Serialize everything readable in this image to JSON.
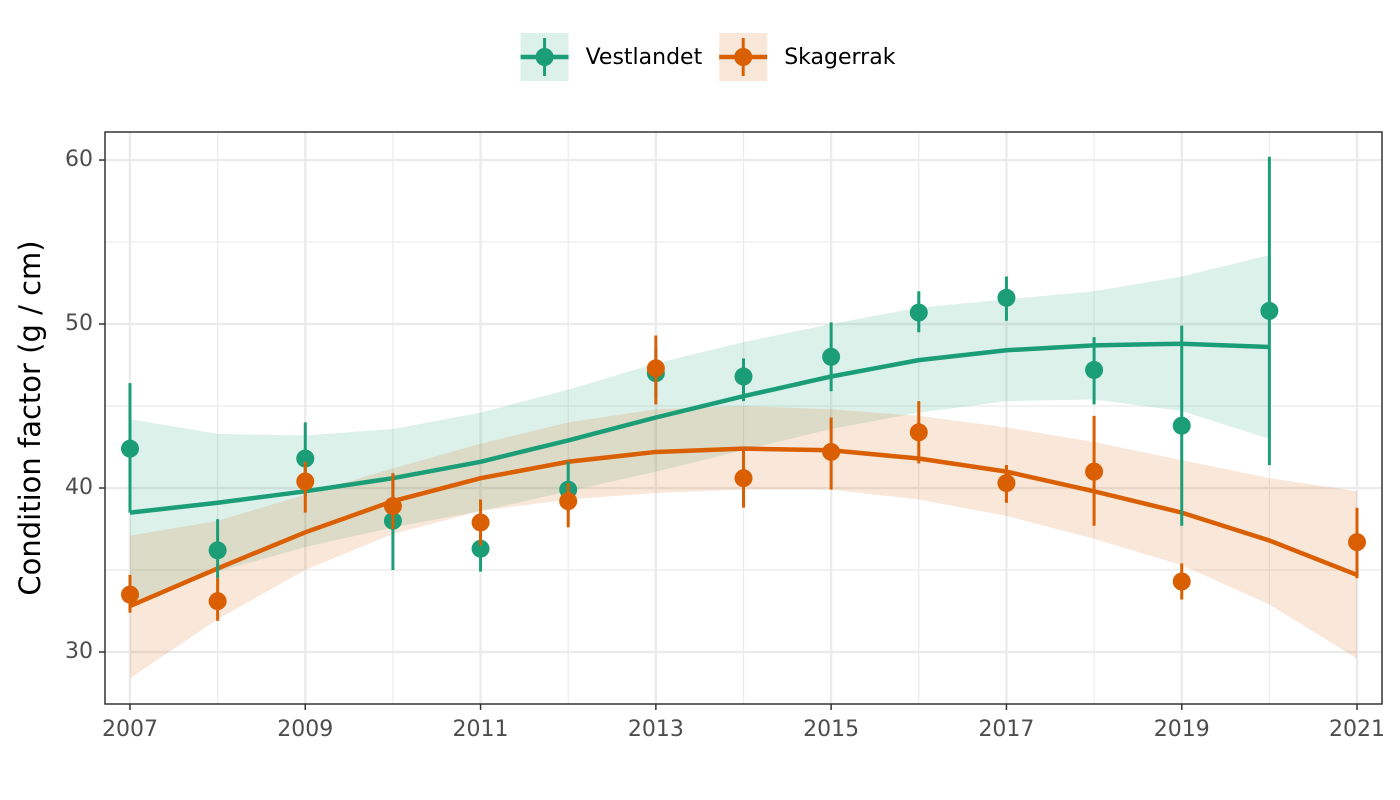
{
  "chart_data": {
    "type": "scatter",
    "y_label": "Condition factor (g / cm)",
    "legend": "top",
    "grid": true,
    "xlim": [
      2006.715,
      2021.285
    ],
    "ylim": [
      26.83,
      61.71
    ],
    "xticks": [
      2007,
      2009,
      2011,
      2013,
      2015,
      2017,
      2019,
      2021
    ],
    "yticks": [
      30,
      40,
      50,
      60
    ],
    "series": [
      {
        "name": "Vestlandet",
        "color": "#1b9e77",
        "x": [
          2007,
          2008,
          2009,
          2010,
          2011,
          2012,
          2013,
          2014,
          2015,
          2016,
          2017,
          2018,
          2019,
          2020
        ],
        "values": [
          42.4,
          36.2,
          41.8,
          38.0,
          36.3,
          39.9,
          47.0,
          46.8,
          48.0,
          50.7,
          51.6,
          47.2,
          43.8,
          50.8
        ],
        "lower": [
          38.5,
          34.5,
          39.5,
          35.0,
          34.9,
          38.5,
          45.5,
          45.3,
          45.9,
          49.5,
          50.2,
          45.1,
          37.7,
          41.4
        ],
        "upper": [
          46.4,
          38.1,
          44.0,
          40.9,
          38.0,
          41.6,
          48.5,
          47.9,
          50.1,
          52.0,
          52.9,
          49.2,
          49.9,
          60.2
        ],
        "smooth": {
          "x": [
            2007,
            2008,
            2009,
            2010,
            2011,
            2012,
            2013,
            2014,
            2015,
            2016,
            2017,
            2018,
            2019,
            2020
          ],
          "values": [
            38.5,
            39.1,
            39.8,
            40.6,
            41.6,
            42.9,
            44.3,
            45.6,
            46.8,
            47.8,
            48.4,
            48.7,
            48.8,
            48.6
          ],
          "lower": [
            32.8,
            34.9,
            36.4,
            37.6,
            38.6,
            39.8,
            41.0,
            42.3,
            43.6,
            44.6,
            45.3,
            45.4,
            44.7,
            43.0
          ],
          "upper": [
            44.2,
            43.3,
            43.2,
            43.6,
            44.6,
            46.0,
            47.6,
            48.9,
            50.0,
            51.0,
            51.5,
            52.0,
            52.9,
            54.2
          ]
        }
      },
      {
        "name": "Skagerrak",
        "color": "#d95f02",
        "x": [
          2007,
          2008,
          2009,
          2010,
          2011,
          2012,
          2013,
          2014,
          2015,
          2016,
          2017,
          2018,
          2019,
          2021
        ],
        "values": [
          33.5,
          33.1,
          40.4,
          38.9,
          37.9,
          39.2,
          47.3,
          40.6,
          42.2,
          43.4,
          40.3,
          41.0,
          34.3,
          36.7
        ],
        "lower": [
          32.4,
          31.9,
          38.5,
          37.5,
          36.5,
          37.6,
          45.1,
          38.8,
          39.9,
          41.5,
          39.1,
          37.7,
          33.2,
          34.5
        ],
        "upper": [
          34.7,
          34.5,
          41.6,
          40.9,
          39.3,
          40.3,
          49.3,
          42.3,
          44.3,
          45.3,
          41.4,
          44.4,
          35.4,
          38.8
        ],
        "smooth": {
          "x": [
            2007,
            2008,
            2009,
            2010,
            2011,
            2012,
            2013,
            2014,
            2015,
            2016,
            2017,
            2018,
            2019,
            2020,
            2021
          ],
          "values": [
            32.8,
            35.1,
            37.3,
            39.2,
            40.6,
            41.6,
            42.2,
            42.4,
            42.3,
            41.8,
            41.0,
            39.8,
            38.5,
            36.8,
            34.7
          ],
          "lower": [
            28.4,
            32.0,
            35.0,
            37.2,
            38.6,
            39.3,
            39.7,
            39.9,
            39.9,
            39.3,
            38.3,
            36.9,
            35.3,
            32.9,
            29.6
          ],
          "upper": [
            37.1,
            38.0,
            39.6,
            41.2,
            42.7,
            44.0,
            44.8,
            45.0,
            44.8,
            44.4,
            43.7,
            42.8,
            41.7,
            40.6,
            39.8
          ]
        }
      }
    ]
  }
}
